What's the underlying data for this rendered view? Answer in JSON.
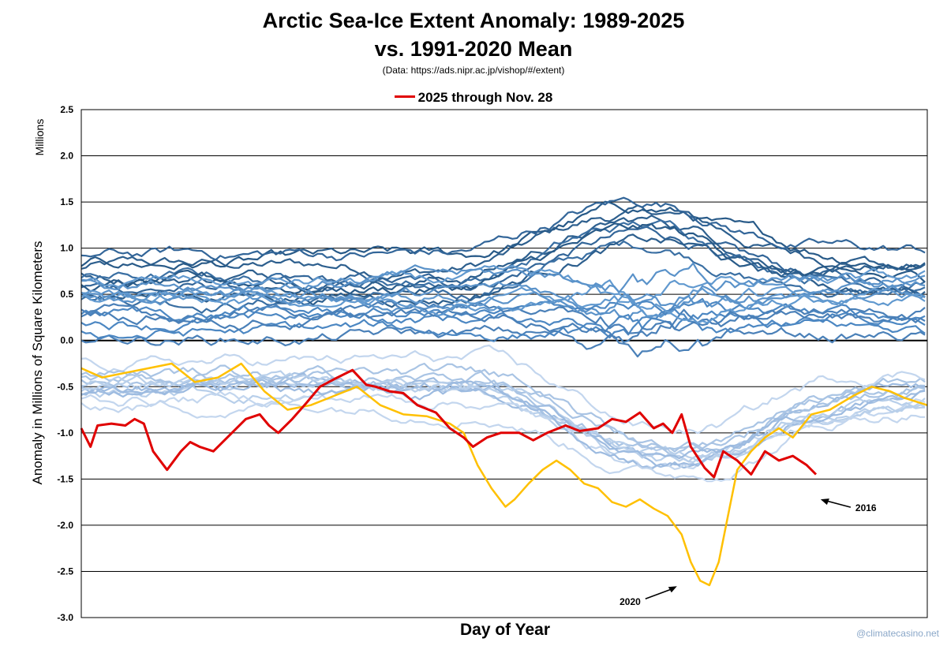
{
  "chart_data": {
    "type": "line",
    "title_line1": "Arctic Sea-Ice Extent Anomaly: 1989-2025",
    "title_line2": "vs. 1991-2020 Mean",
    "subtitle": "(Data: https://ads.nipr.ac.jp/vishop/#/extent)",
    "xlabel": "Day of Year",
    "ylabel": "Anomaly in Millions of Square Kilometers",
    "yunit": "Millions",
    "ylim": [
      -3.0,
      2.5
    ],
    "xlim": [
      1,
      366
    ],
    "yticks": [
      "2.5",
      "2.0",
      "1.5",
      "1.0",
      "0.5",
      "0.0",
      "-0.5",
      "-1.0",
      "-1.5",
      "-2.0",
      "-2.5",
      "-3.0"
    ],
    "grid": "horizontal",
    "legend_position": "top-center",
    "legend": [
      {
        "name": "2025 through Nov. 28",
        "color": "#e00000"
      }
    ],
    "credit": "@climatecasino.net",
    "annotations": [
      {
        "text": "2016",
        "x": 320,
        "y": -1.72
      },
      {
        "text": "2020",
        "x": 258,
        "y": -2.66
      }
    ],
    "colors": {
      "y2025": "#e00000",
      "y2020": "#ffc000",
      "dark": "#2d5f8e",
      "mid": "#4c87c2",
      "light": "#a9c4e4"
    },
    "highlight_series": [
      {
        "name": "2025 through Nov. 28",
        "color": "#e00000",
        "width": 3,
        "points": [
          [
            1,
            -0.95
          ],
          [
            5,
            -1.15
          ],
          [
            8,
            -0.92
          ],
          [
            14,
            -0.9
          ],
          [
            20,
            -0.92
          ],
          [
            24,
            -0.85
          ],
          [
            28,
            -0.9
          ],
          [
            32,
            -1.2
          ],
          [
            38,
            -1.4
          ],
          [
            44,
            -1.2
          ],
          [
            48,
            -1.1
          ],
          [
            52,
            -1.15
          ],
          [
            58,
            -1.2
          ],
          [
            64,
            -1.05
          ],
          [
            72,
            -0.85
          ],
          [
            78,
            -0.8
          ],
          [
            82,
            -0.92
          ],
          [
            86,
            -1.0
          ],
          [
            92,
            -0.85
          ],
          [
            98,
            -0.68
          ],
          [
            104,
            -0.5
          ],
          [
            110,
            -0.42
          ],
          [
            118,
            -0.32
          ],
          [
            124,
            -0.48
          ],
          [
            128,
            -0.5
          ],
          [
            134,
            -0.55
          ],
          [
            140,
            -0.57
          ],
          [
            146,
            -0.7
          ],
          [
            154,
            -0.78
          ],
          [
            160,
            -0.95
          ],
          [
            166,
            -1.05
          ],
          [
            170,
            -1.15
          ],
          [
            176,
            -1.05
          ],
          [
            182,
            -1.0
          ],
          [
            190,
            -1.0
          ],
          [
            196,
            -1.08
          ],
          [
            202,
            -1.0
          ],
          [
            210,
            -0.92
          ],
          [
            216,
            -0.98
          ],
          [
            224,
            -0.95
          ],
          [
            230,
            -0.85
          ],
          [
            236,
            -0.88
          ],
          [
            242,
            -0.78
          ],
          [
            248,
            -0.95
          ],
          [
            252,
            -0.9
          ],
          [
            256,
            -1.0
          ],
          [
            260,
            -0.8
          ],
          [
            264,
            -1.15
          ],
          [
            270,
            -1.38
          ],
          [
            274,
            -1.48
          ],
          [
            278,
            -1.2
          ],
          [
            284,
            -1.3
          ],
          [
            290,
            -1.45
          ],
          [
            296,
            -1.2
          ],
          [
            302,
            -1.3
          ],
          [
            308,
            -1.25
          ],
          [
            314,
            -1.35
          ],
          [
            318,
            -1.45
          ]
        ]
      },
      {
        "name": "2020",
        "color": "#ffc000",
        "width": 2.5,
        "points": [
          [
            1,
            -0.3
          ],
          [
            10,
            -0.4
          ],
          [
            20,
            -0.35
          ],
          [
            30,
            -0.3
          ],
          [
            40,
            -0.25
          ],
          [
            50,
            -0.45
          ],
          [
            60,
            -0.4
          ],
          [
            70,
            -0.25
          ],
          [
            80,
            -0.55
          ],
          [
            90,
            -0.75
          ],
          [
            100,
            -0.7
          ],
          [
            110,
            -0.6
          ],
          [
            120,
            -0.5
          ],
          [
            130,
            -0.7
          ],
          [
            140,
            -0.8
          ],
          [
            150,
            -0.82
          ],
          [
            160,
            -0.9
          ],
          [
            166,
            -1.0
          ],
          [
            172,
            -1.35
          ],
          [
            178,
            -1.6
          ],
          [
            184,
            -1.8
          ],
          [
            188,
            -1.72
          ],
          [
            194,
            -1.55
          ],
          [
            200,
            -1.4
          ],
          [
            206,
            -1.3
          ],
          [
            212,
            -1.4
          ],
          [
            218,
            -1.55
          ],
          [
            224,
            -1.6
          ],
          [
            230,
            -1.75
          ],
          [
            236,
            -1.8
          ],
          [
            242,
            -1.72
          ],
          [
            248,
            -1.82
          ],
          [
            254,
            -1.9
          ],
          [
            260,
            -2.1
          ],
          [
            264,
            -2.4
          ],
          [
            268,
            -2.6
          ],
          [
            272,
            -2.65
          ],
          [
            276,
            -2.4
          ],
          [
            280,
            -1.9
          ],
          [
            284,
            -1.4
          ],
          [
            290,
            -1.2
          ],
          [
            296,
            -1.05
          ],
          [
            302,
            -0.95
          ],
          [
            308,
            -1.05
          ],
          [
            316,
            -0.8
          ],
          [
            324,
            -0.75
          ],
          [
            334,
            -0.6
          ],
          [
            342,
            -0.5
          ],
          [
            350,
            -0.55
          ],
          [
            356,
            -0.62
          ],
          [
            366,
            -0.7
          ]
        ]
      }
    ]
  }
}
